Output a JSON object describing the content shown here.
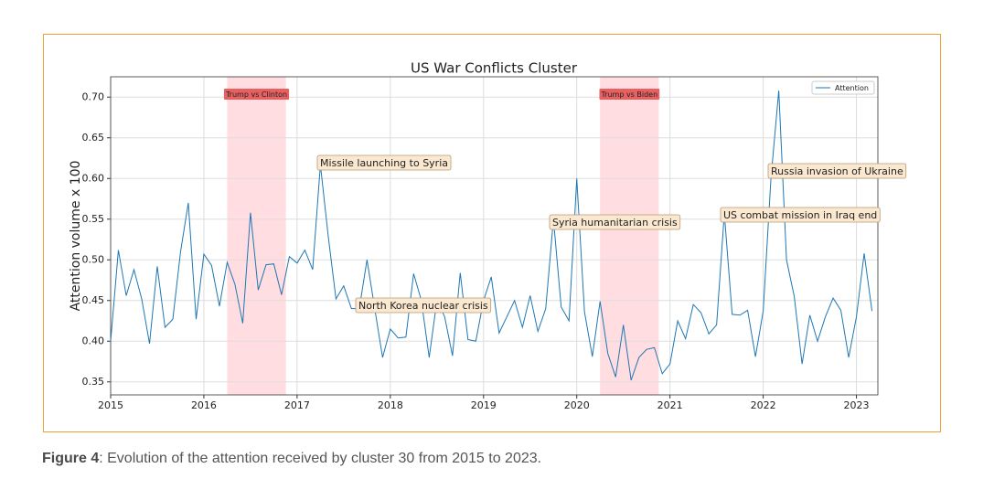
{
  "chart_data": {
    "type": "line",
    "title": "US War Conflicts Cluster",
    "ylabel": "Attention volume x 100",
    "x": [
      2015,
      2015.083,
      2015.167,
      2015.25,
      2015.333,
      2015.417,
      2015.5,
      2015.583,
      2015.667,
      2015.75,
      2015.833,
      2015.917,
      2016,
      2016.083,
      2016.167,
      2016.25,
      2016.333,
      2016.417,
      2016.5,
      2016.583,
      2016.667,
      2016.75,
      2016.833,
      2016.917,
      2017,
      2017.083,
      2017.167,
      2017.25,
      2017.333,
      2017.417,
      2017.5,
      2017.583,
      2017.667,
      2017.75,
      2017.833,
      2017.917,
      2018,
      2018.083,
      2018.167,
      2018.25,
      2018.333,
      2018.417,
      2018.5,
      2018.583,
      2018.667,
      2018.75,
      2018.833,
      2018.917,
      2019,
      2019.083,
      2019.167,
      2019.25,
      2019.333,
      2019.417,
      2019.5,
      2019.583,
      2019.667,
      2019.75,
      2019.833,
      2019.917,
      2020,
      2020.083,
      2020.167,
      2020.25,
      2020.333,
      2020.417,
      2020.5,
      2020.583,
      2020.667,
      2020.75,
      2020.833,
      2020.917,
      2021,
      2021.083,
      2021.167,
      2021.25,
      2021.333,
      2021.417,
      2021.5,
      2021.583,
      2021.667,
      2021.75,
      2021.833,
      2021.917,
      2022,
      2022.083,
      2022.167,
      2022.25,
      2022.333,
      2022.417,
      2022.5,
      2022.583,
      2022.667,
      2022.75,
      2022.833,
      2022.917,
      2023,
      2023.083,
      2023.167
    ],
    "series": [
      {
        "name": "Attention",
        "color": "#1f77b4",
        "values": [
          0.4,
          0.512,
          0.456,
          0.488,
          0.452,
          0.397,
          0.492,
          0.417,
          0.427,
          0.51,
          0.57,
          0.427,
          0.507,
          0.493,
          0.443,
          0.497,
          0.47,
          0.422,
          0.558,
          0.463,
          0.494,
          0.495,
          0.457,
          0.504,
          0.496,
          0.512,
          0.488,
          0.617,
          0.53,
          0.452,
          0.468,
          0.44,
          0.44,
          0.5,
          0.44,
          0.38,
          0.415,
          0.404,
          0.405,
          0.483,
          0.45,
          0.38,
          0.45,
          0.43,
          0.382,
          0.484,
          0.402,
          0.4,
          0.45,
          0.479,
          0.41,
          0.43,
          0.45,
          0.417,
          0.456,
          0.412,
          0.44,
          0.55,
          0.442,
          0.425,
          0.6,
          0.436,
          0.381,
          0.449,
          0.385,
          0.356,
          0.42,
          0.352,
          0.38,
          0.39,
          0.392,
          0.36,
          0.372,
          0.425,
          0.403,
          0.445,
          0.435,
          0.409,
          0.42,
          0.557,
          0.433,
          0.432,
          0.438,
          0.381,
          0.437,
          0.6,
          0.708,
          0.5,
          0.455,
          0.372,
          0.432,
          0.4,
          0.43,
          0.453,
          0.438,
          0.38,
          0.43,
          0.508,
          0.437
        ]
      }
    ],
    "xlim": [
      2015,
      2023.23
    ],
    "ylim": [
      0.334,
      0.725
    ],
    "xticks": [
      2015,
      2016,
      2017,
      2018,
      2019,
      2020,
      2021,
      2022,
      2023
    ],
    "yticks": [
      0.35,
      {
        "value": 0.4,
        "label": "0.40"
      },
      0.45,
      {
        "value": 0.5,
        "label": "0.50"
      },
      0.55,
      {
        "value": 0.6,
        "label": "0.60"
      },
      0.65,
      {
        "value": 0.7,
        "label": "0.70"
      }
    ],
    "grid": true,
    "legend": "upper right",
    "spans": [
      {
        "label": "Trump vs Clinton",
        "x0": 2016.25,
        "x1": 2016.88,
        "color": "#ffdde0"
      },
      {
        "label": "Trump vs Biden",
        "x0": 2020.25,
        "x1": 2020.88,
        "color": "#ffdde0"
      }
    ],
    "annotations": [
      "Missile launching to Syria",
      "North Korea nuclear crisis",
      "Syria humanitarian crisis",
      "US combat mission in Iraq end",
      "Russia invasion of Ukraine"
    ]
  },
  "caption": {
    "label": "Figure 4",
    "text": ": Evolution of the attention received by cluster 30 from 2015 to 2023."
  }
}
